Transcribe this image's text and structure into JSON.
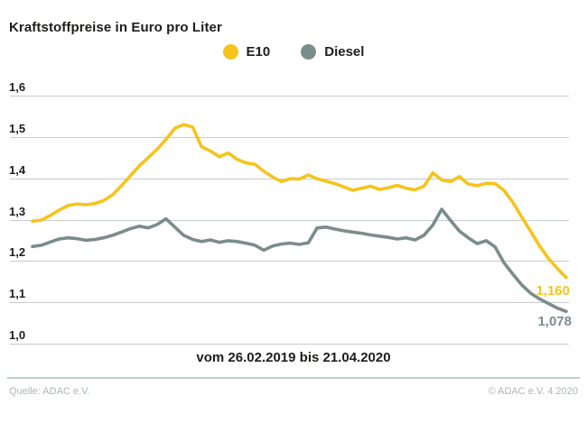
{
  "title": "Kraftstoffpreise in Euro pro Liter",
  "xlabel": "vom 26.02.2019 bis 21.04.2020",
  "footer": {
    "source": "Quelle: ADAC e.V.",
    "copyright": "© ADAC e.V. 4.2020"
  },
  "colors": {
    "e10": "#f5c41c",
    "diesel": "#7b8c8d",
    "text_dark": "#1d1d1b",
    "gridline": "#c6cbcd",
    "footer_text": "#a4bab1",
    "footer_rule": "#bed0c8"
  },
  "chart_data": {
    "type": "line",
    "title": "Kraftstoffpreise in Euro pro Liter",
    "xlabel": "vom 26.02.2019 bis 21.04.2020",
    "x_period": {
      "from": "26.02.2019",
      "to": "21.04.2020",
      "interval": "weekly"
    },
    "ylabel": "Euro pro Liter",
    "ylim": [
      1.0,
      1.6
    ],
    "yticks": [
      "1,6",
      "1,5",
      "1,4",
      "1,3",
      "1,2",
      "1,1",
      "1,0"
    ],
    "grid": "horizontal",
    "legend_position": "top-center",
    "series": [
      {
        "name": "E10",
        "color": "#f5c41c",
        "end_label": "1,160",
        "end_value": 1.16,
        "values": [
          1.296,
          1.299,
          1.31,
          1.323,
          1.334,
          1.338,
          1.336,
          1.339,
          1.346,
          1.36,
          1.382,
          1.406,
          1.43,
          1.45,
          1.47,
          1.494,
          1.521,
          1.53,
          1.524,
          1.476,
          1.466,
          1.452,
          1.461,
          1.446,
          1.437,
          1.434,
          1.417,
          1.403,
          1.392,
          1.399,
          1.398,
          1.408,
          1.399,
          1.393,
          1.387,
          1.379,
          1.371,
          1.376,
          1.381,
          1.373,
          1.377,
          1.383,
          1.376,
          1.372,
          1.381,
          1.413,
          1.396,
          1.392,
          1.404,
          1.386,
          1.382,
          1.388,
          1.387,
          1.371,
          1.342,
          1.306,
          1.272,
          1.236,
          1.206,
          1.182,
          1.16
        ]
      },
      {
        "name": "Diesel",
        "color": "#7b8c8d",
        "end_label": "1,078",
        "end_value": 1.078,
        "values": [
          1.235,
          1.238,
          1.246,
          1.253,
          1.256,
          1.254,
          1.25,
          1.252,
          1.256,
          1.262,
          1.27,
          1.278,
          1.284,
          1.28,
          1.288,
          1.302,
          1.282,
          1.262,
          1.252,
          1.247,
          1.251,
          1.245,
          1.249,
          1.247,
          1.243,
          1.238,
          1.226,
          1.236,
          1.241,
          1.243,
          1.24,
          1.244,
          1.28,
          1.282,
          1.277,
          1.273,
          1.27,
          1.267,
          1.263,
          1.26,
          1.257,
          1.253,
          1.256,
          1.251,
          1.262,
          1.287,
          1.325,
          1.298,
          1.272,
          1.256,
          1.242,
          1.249,
          1.234,
          1.196,
          1.168,
          1.142,
          1.122,
          1.108,
          1.097,
          1.086,
          1.078
        ]
      }
    ]
  }
}
